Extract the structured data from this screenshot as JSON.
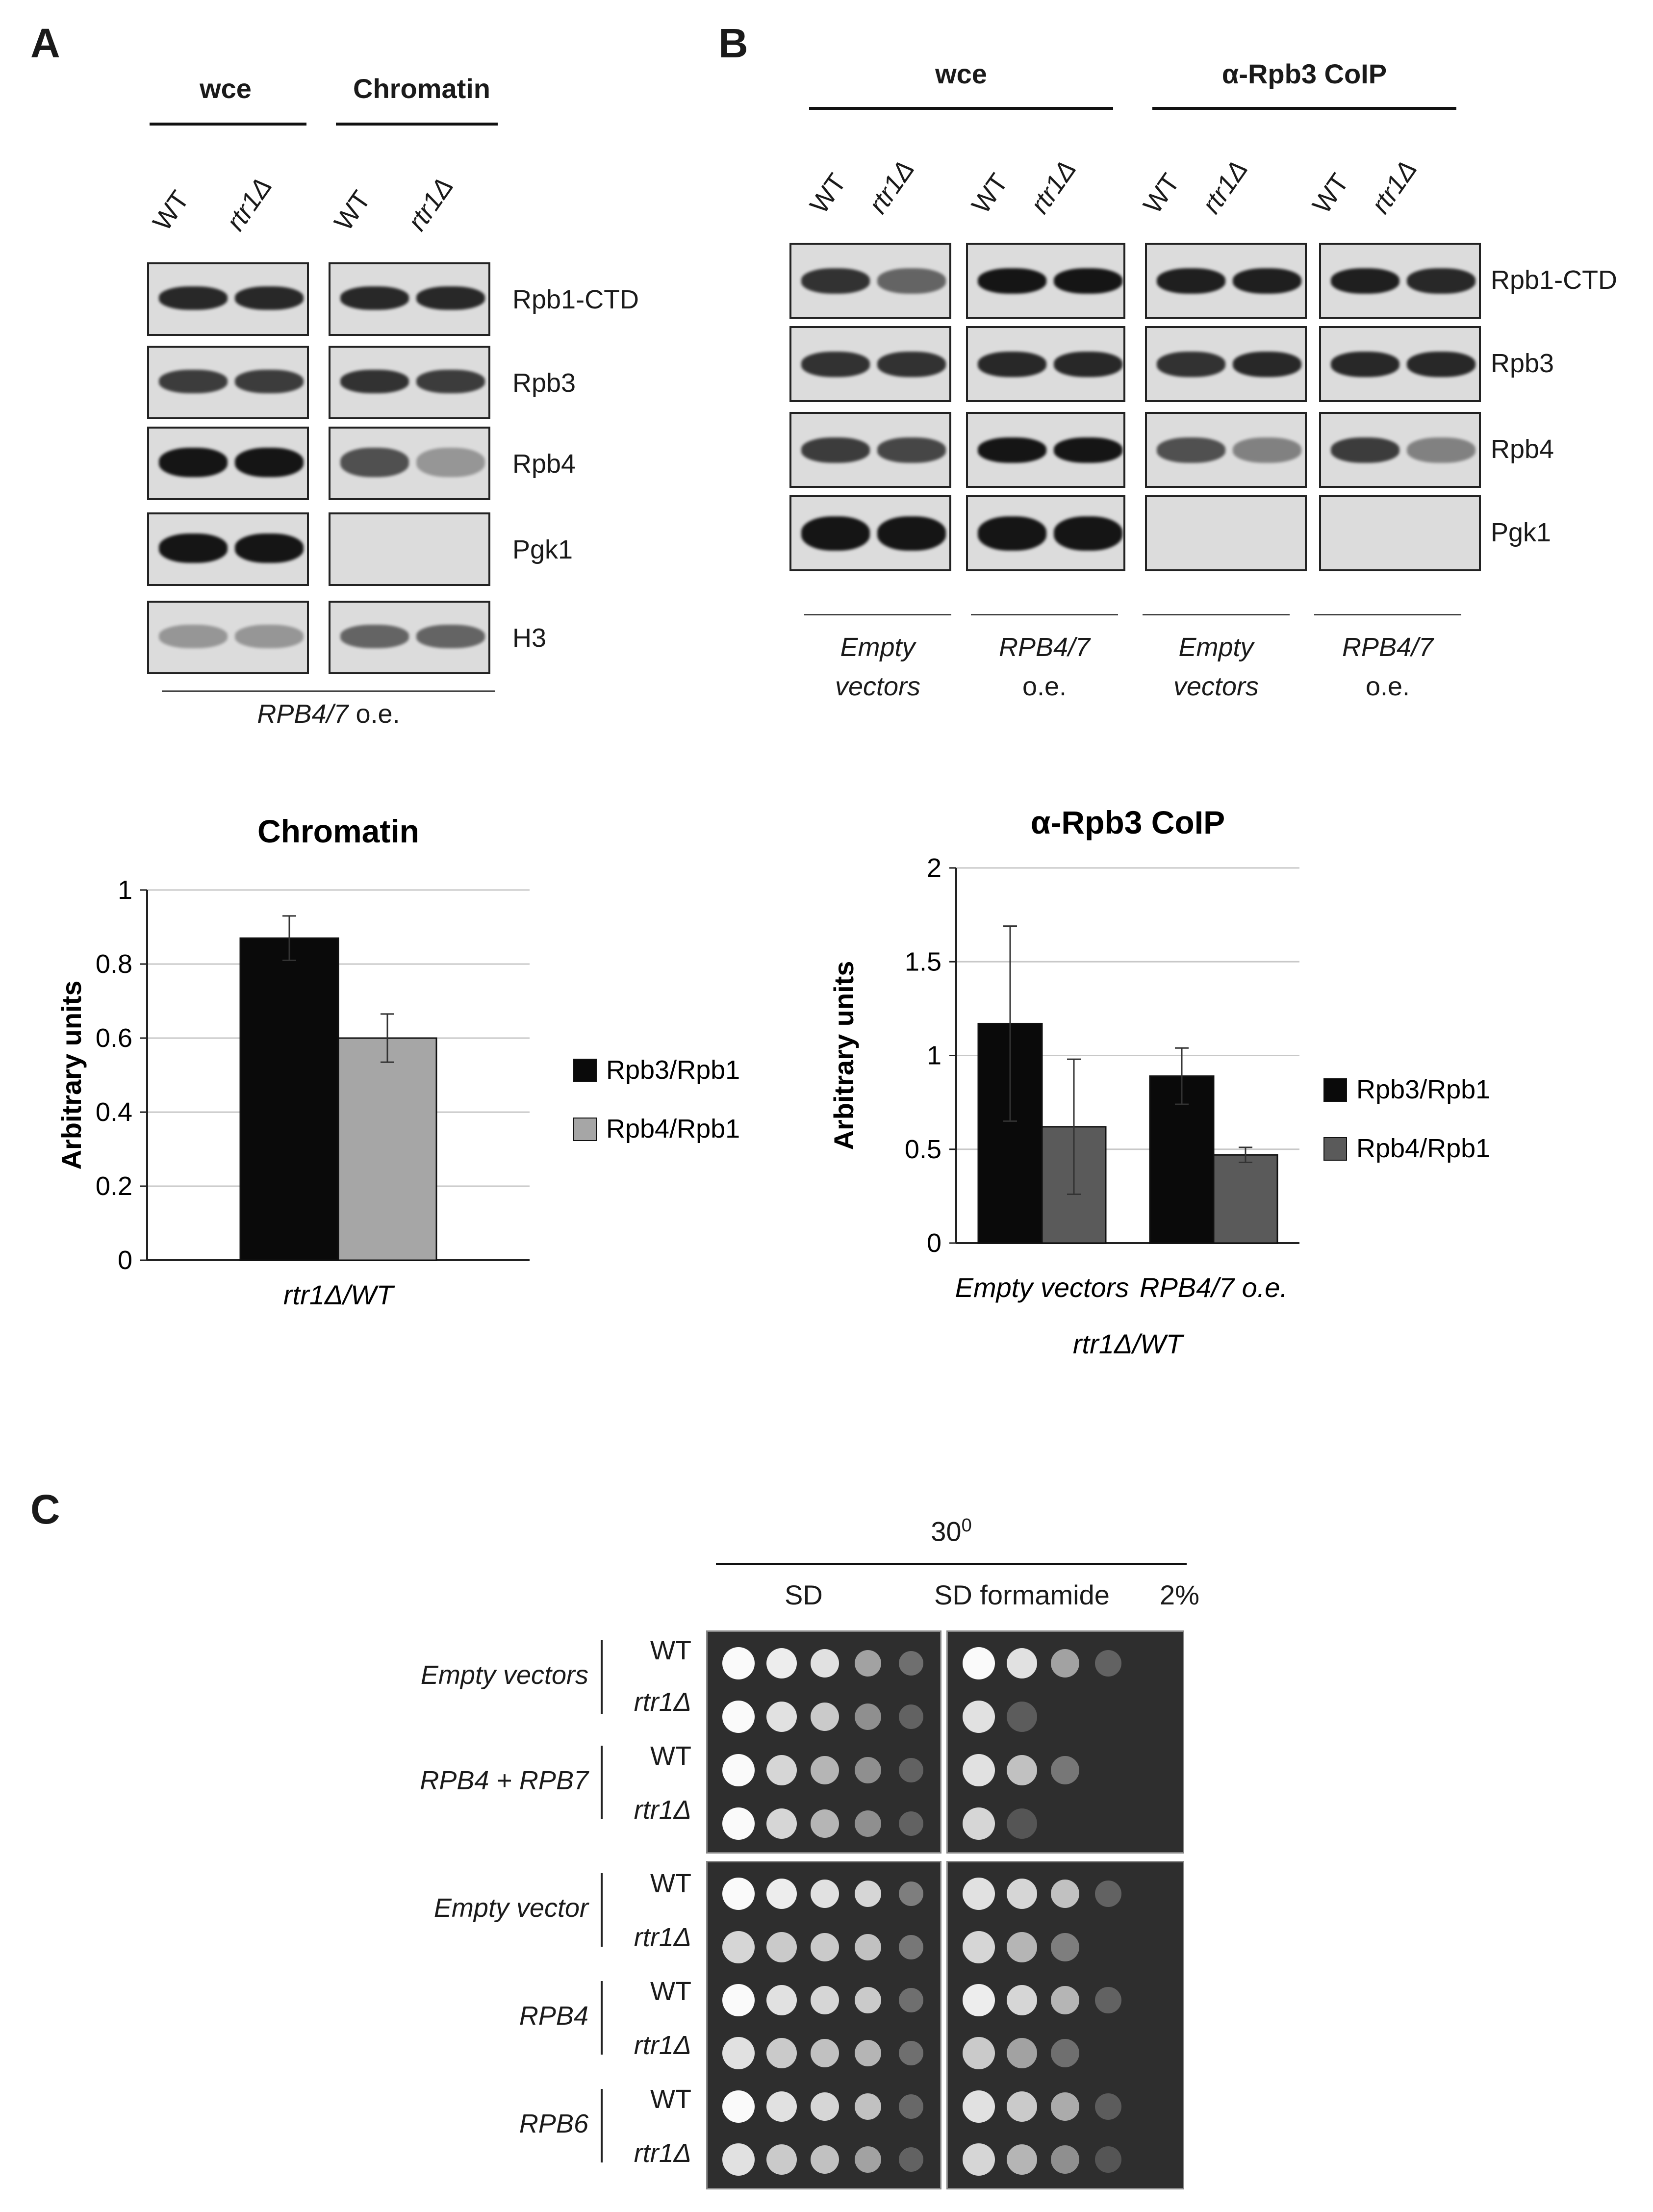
{
  "panels": {
    "a": "A",
    "b": "B",
    "c": "C"
  },
  "panel_a": {
    "groups": [
      "wce",
      "Chromatin"
    ],
    "lanes": [
      "WT",
      "rtr1Δ",
      "WT",
      "rtr1Δ"
    ],
    "rows": [
      "Rpb1-CTD",
      "Rpb3",
      "Rpb4",
      "Pgk1",
      "H3"
    ],
    "footer_italic": "RPB4/7",
    "footer_plain": " o.e."
  },
  "panel_b": {
    "groups": [
      "wce",
      "α-Rpb3 CoIP"
    ],
    "lanes": [
      "WT",
      "rtr1Δ",
      "WT",
      "rtr1Δ",
      "WT",
      "rtr1Δ",
      "WT",
      "rtr1Δ"
    ],
    "rows": [
      "Rpb1-CTD",
      "Rpb3",
      "Rpb4",
      "Pgk1"
    ],
    "conditions": [
      {
        "line1": "Empty",
        "line2": "vectors"
      },
      {
        "line1": "RPB4/7",
        "line2": "o.e."
      },
      {
        "line1": "Empty",
        "line2": "vectors"
      },
      {
        "line1": "RPB4/7",
        "line2": "o.e."
      }
    ]
  },
  "chart_data": [
    {
      "type": "bar",
      "title": "Chromatin",
      "ylabel": "Arbitrary units",
      "xlabel": "rtr1Δ/WT",
      "categories": [
        ""
      ],
      "ylim": [
        0,
        1
      ],
      "yticks": [
        "0",
        "0.2",
        "0.4",
        "0.6",
        "0.8",
        "1"
      ],
      "series": [
        {
          "name": "Rpb3/Rpb1",
          "values": [
            0.87
          ],
          "errors": [
            0.06
          ],
          "color": "#0a0a0a"
        },
        {
          "name": "Rpb4/Rpb1",
          "values": [
            0.6
          ],
          "errors": [
            0.065
          ],
          "color": "#a6a6a6"
        }
      ],
      "legend": "right",
      "grid": true
    },
    {
      "type": "bar",
      "title": "α-Rpb3 CoIP",
      "ylabel": "Arbitrary units",
      "xlabel": "rtr1Δ/WT",
      "categories": [
        "Empty vectors",
        "RPB4/7 o.e."
      ],
      "ylim": [
        0,
        2
      ],
      "yticks": [
        "0",
        "0.5",
        "1",
        "1.5",
        "2"
      ],
      "series": [
        {
          "name": "Rpb3/Rpb1",
          "values": [
            1.17,
            0.89
          ],
          "errors": [
            0.52,
            0.15
          ],
          "color": "#0a0a0a"
        },
        {
          "name": "Rpb4/Rpb1",
          "values": [
            0.62,
            0.47
          ],
          "errors": [
            0.36,
            0.04
          ],
          "color": "#5a5a5a"
        }
      ],
      "legend": "right",
      "grid": true
    }
  ],
  "panel_c": {
    "temperature_base": "30",
    "temperature_sup": "0",
    "media": [
      "SD",
      "SD formamide",
      "2%"
    ],
    "top_groups": [
      "Empty vectors",
      "RPB4 + RPB7"
    ],
    "bottom_groups": [
      "Empty vector",
      "RPB4",
      "RPB6"
    ],
    "strains": [
      "WT",
      "rtr1Δ"
    ]
  }
}
